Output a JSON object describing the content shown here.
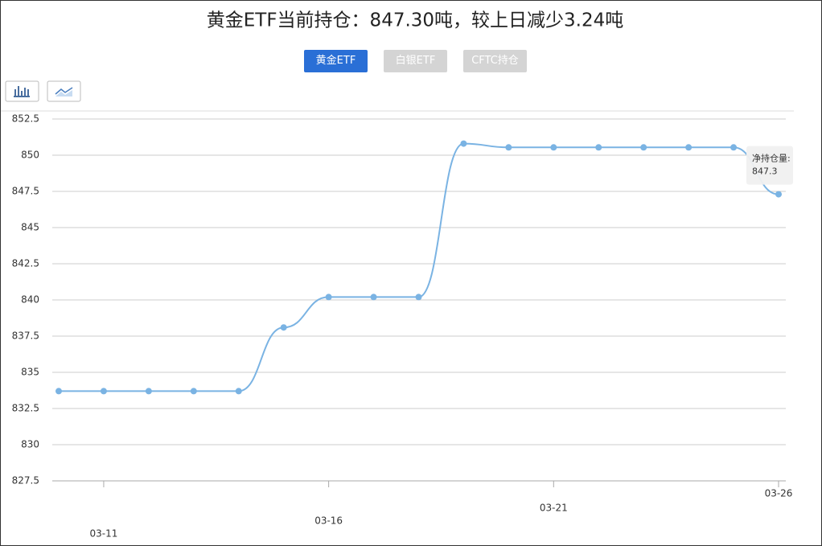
{
  "chart_data": {
    "type": "line",
    "title": "黄金ETF当前持仓：847.30吨，较上日减少3.24吨",
    "tabs": [
      "黄金ETF",
      "白银ETF",
      "CFTC持仓"
    ],
    "categories": [
      null,
      "03-11",
      null,
      null,
      null,
      null,
      "03-16",
      null,
      null,
      null,
      null,
      "03-21",
      null,
      null,
      null,
      null,
      "03-26"
    ],
    "series": [
      {
        "name": "净持仓量",
        "color": "#7ab3e3",
        "values": [
          833.7,
          833.7,
          833.7,
          833.7,
          833.7,
          838.1,
          840.2,
          840.2,
          840.2,
          850.8,
          850.54,
          850.54,
          850.54,
          850.54,
          850.54,
          850.54,
          847.3
        ]
      }
    ],
    "tooltip_label": "净持仓量:",
    "ylim": [
      827.5,
      852.5
    ],
    "yticks": [
      827.5,
      830,
      832.5,
      835,
      837.5,
      840,
      842.5,
      845,
      847.5,
      850,
      852.5
    ],
    "grid": true
  }
}
